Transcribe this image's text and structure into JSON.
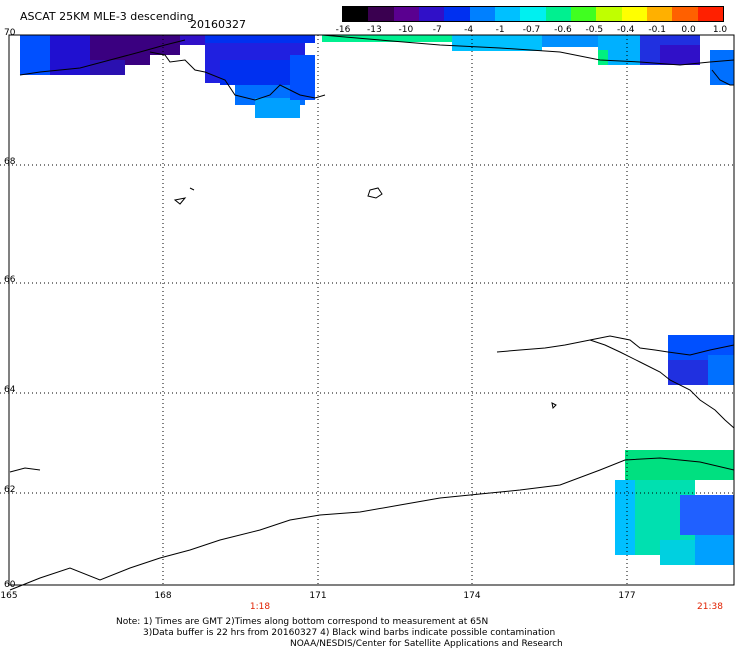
{
  "header": {
    "title": "ASCAT 25KM MLE-3 descending",
    "date": "20160327"
  },
  "colorbar": {
    "labels": [
      "-16",
      "-13",
      "-10",
      "-7",
      "-4",
      "-1",
      "-0.7",
      "-0.6",
      "-0.5",
      "-0.4",
      "-0.1",
      "0.0",
      "1.0"
    ],
    "colors": [
      "#000000",
      "#3a0050",
      "#5a0090",
      "#3010c8",
      "#0030f0",
      "#0080ff",
      "#00c0ff",
      "#00f0f0",
      "#00f090",
      "#40ff20",
      "#c0ff00",
      "#ffff00",
      "#ffb000",
      "#ff6000",
      "#ff2000"
    ]
  },
  "axes": {
    "lat_labels": [
      "70",
      "68",
      "66",
      "64",
      "62",
      "60"
    ],
    "lon_labels": [
      "165",
      "168",
      "171",
      "174",
      "177"
    ],
    "time_labels": [
      "1:18",
      "21:38"
    ]
  },
  "colors": {
    "time_label": "#e02000",
    "grid": "#000000",
    "coast": "#000000"
  },
  "notes": {
    "line1": "Note: 1) Times are GMT 2)Times along bottom correspond to measurement at 65N",
    "line2": "3)Data buffer is 22 hrs from 20160327 4) Black wind barbs indicate possible contamination",
    "line3": "NOAA/NESDIS/Center for Satellite Applications and Research"
  }
}
